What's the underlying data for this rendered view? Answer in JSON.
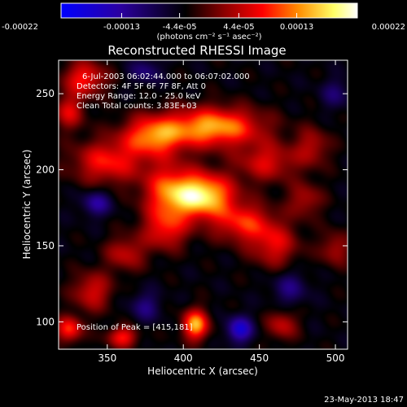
{
  "colorbar": {
    "tick_labels": [
      "-0.00022",
      "-0.00013",
      "-4.4e-05",
      "4.4e-05",
      "0.00013",
      "0.00022"
    ],
    "tick_values": [
      -0.00022,
      -0.00013,
      -4.4e-05,
      4.4e-05,
      0.00013,
      0.00022
    ],
    "range": [
      -0.00022,
      0.00022
    ],
    "units_label": "(photons cm⁻² s⁻¹ asec⁻²)",
    "gradient_colors": [
      "#0000ff",
      "#2b00a0",
      "#000000",
      "#8a0000",
      "#ff0000",
      "#ff8c00",
      "#ffff66",
      "#ffffff"
    ]
  },
  "chart_data": {
    "type": "heatmap",
    "title": "Reconstructed RHESSI Image",
    "xlabel": "Heliocentric X (arcsec)",
    "ylabel": "Heliocentric Y (arcsec)",
    "xlim": [
      318,
      508
    ],
    "ylim": [
      82,
      272
    ],
    "x_ticks": [
      350,
      400,
      450,
      500
    ],
    "y_ticks": [
      100,
      150,
      200,
      250
    ],
    "peak": [
      415,
      181
    ],
    "blobs": [
      {
        "x": 413,
        "y": 183,
        "amp": 1.0,
        "sx": 14,
        "sy": 10
      },
      {
        "x": 420,
        "y": 228,
        "amp": 0.85,
        "sx": 22,
        "sy": 9
      },
      {
        "x": 380,
        "y": 222,
        "amp": 0.7,
        "sx": 14,
        "sy": 9
      },
      {
        "x": 350,
        "y": 205,
        "amp": 0.55,
        "sx": 16,
        "sy": 10
      },
      {
        "x": 390,
        "y": 185,
        "amp": 0.6,
        "sx": 12,
        "sy": 14
      },
      {
        "x": 440,
        "y": 165,
        "amp": 0.55,
        "sx": 14,
        "sy": 9
      },
      {
        "x": 460,
        "y": 150,
        "amp": 0.45,
        "sx": 11,
        "sy": 10
      },
      {
        "x": 455,
        "y": 205,
        "amp": 0.45,
        "sx": 14,
        "sy": 9
      },
      {
        "x": 485,
        "y": 215,
        "amp": 0.35,
        "sx": 8,
        "sy": 9
      },
      {
        "x": 388,
        "y": 160,
        "amp": 0.45,
        "sx": 10,
        "sy": 9
      },
      {
        "x": 362,
        "y": 145,
        "amp": 0.4,
        "sx": 9,
        "sy": 8
      },
      {
        "x": 340,
        "y": 120,
        "amp": 0.45,
        "sx": 9,
        "sy": 9
      },
      {
        "x": 335,
        "y": 260,
        "amp": 0.55,
        "sx": 10,
        "sy": 8
      },
      {
        "x": 325,
        "y": 238,
        "amp": 0.45,
        "sx": 7,
        "sy": 8
      },
      {
        "x": 408,
        "y": 98,
        "amp": 0.85,
        "sx": 6,
        "sy": 7
      },
      {
        "x": 360,
        "y": 90,
        "amp": 0.55,
        "sx": 7,
        "sy": 5
      },
      {
        "x": 325,
        "y": 95,
        "amp": 0.6,
        "sx": 6,
        "sy": 6
      },
      {
        "x": 465,
        "y": 98,
        "amp": 0.4,
        "sx": 7,
        "sy": 7
      },
      {
        "x": 500,
        "y": 148,
        "amp": 0.35,
        "sx": 7,
        "sy": 8
      },
      {
        "x": 480,
        "y": 180,
        "amp": 0.35,
        "sx": 8,
        "sy": 8
      },
      {
        "x": 437,
        "y": 95,
        "amp": -0.6,
        "sx": 6,
        "sy": 6
      },
      {
        "x": 343,
        "y": 178,
        "amp": -0.4,
        "sx": 7,
        "sy": 6
      },
      {
        "x": 375,
        "y": 110,
        "amp": -0.3,
        "sx": 7,
        "sy": 7
      },
      {
        "x": 470,
        "y": 122,
        "amp": -0.3,
        "sx": 8,
        "sy": 8
      },
      {
        "x": 500,
        "y": 250,
        "amp": -0.25,
        "sx": 7,
        "sy": 7
      },
      {
        "x": 375,
        "y": 265,
        "amp": -0.3,
        "sx": 7,
        "sy": 6
      }
    ],
    "background_level": -0.18
  },
  "annotations": {
    "time_range": "6-Jul-2003 06:02:44.000 to 06:07:02.000",
    "detectors": "Detectors: 4F 5F 6F 7F 8F, Att 0",
    "energy": "Energy Range: 12.0 - 25.0 keV",
    "clean": "Clean     Total counts: 3.83E+03",
    "peak": "Position of Peak = [415,181]"
  },
  "footer": {
    "timestamp": "23-May-2013 18:47"
  }
}
